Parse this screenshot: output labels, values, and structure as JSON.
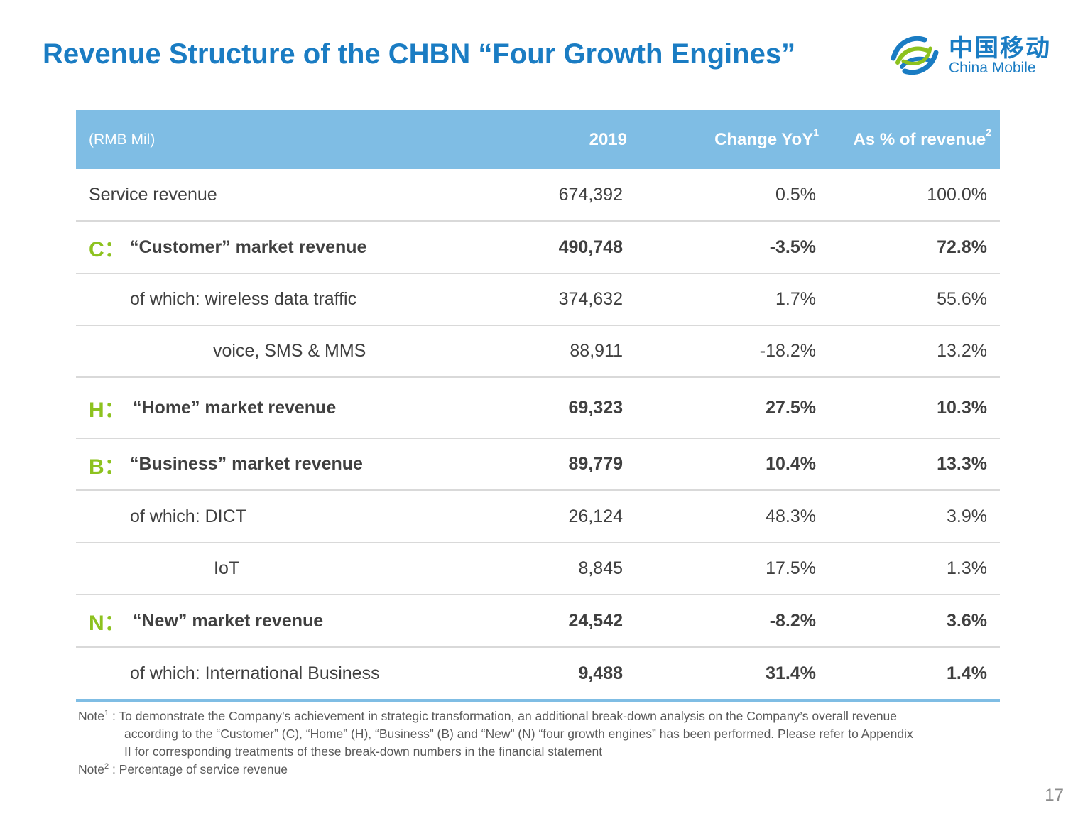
{
  "slide": {
    "title": "Revenue Structure of the CHBN “Four Growth Engines”",
    "page_number": "17"
  },
  "logo": {
    "cn": "中国移动",
    "en": "China Mobile",
    "colors": {
      "blue": "#1a7cc3",
      "green": "#8dc21f"
    }
  },
  "table": {
    "header": {
      "unit": "(RMB Mil)",
      "col1": "2019",
      "col2": "Change YoY",
      "col2_sup": "1",
      "col3": "As % of revenue",
      "col3_sup": "2"
    },
    "rows": [
      {
        "letter": "",
        "label": "Service revenue",
        "v2019": "674,392",
        "yoy": "0.5%",
        "pct": "100.0%"
      },
      {
        "letter": "C：",
        "label": "“Customer” market revenue",
        "v2019": "490,748",
        "yoy": "-3.5%",
        "pct": "72.8%"
      },
      {
        "letter": "",
        "label": "of which: wireless data traffic",
        "v2019": "374,632",
        "yoy": "1.7%",
        "pct": "55.6%"
      },
      {
        "letter": "",
        "label": "voice, SMS & MMS",
        "v2019": "88,911",
        "yoy": "-18.2%",
        "pct": "13.2%"
      },
      {
        "letter": "H：",
        "label": "“Home” market revenue",
        "v2019": "69,323",
        "yoy": "27.5%",
        "pct": "10.3%"
      },
      {
        "letter": "B：",
        "label": "“Business” market revenue",
        "v2019": "89,779",
        "yoy": "10.4%",
        "pct": "13.3%"
      },
      {
        "letter": "",
        "label": "of which: DICT",
        "v2019": "26,124",
        "yoy": "48.3%",
        "pct": "3.9%"
      },
      {
        "letter": "",
        "label": "IoT",
        "v2019": "8,845",
        "yoy": "17.5%",
        "pct": "1.3%"
      },
      {
        "letter": "N：",
        "label": "“New” market revenue",
        "v2019": "24,542",
        "yoy": "-8.2%",
        "pct": "3.6%"
      },
      {
        "letter": "",
        "label": "of which: International Business",
        "v2019": "9,488",
        "yoy": "31.4%",
        "pct": "1.4%"
      }
    ]
  },
  "notes": {
    "note1_prefix": "Note",
    "note1_sup": "1",
    "note1_line1": " : To demonstrate the Company’s achievement in strategic transformation, an additional break-down analysis on the Company’s overall revenue",
    "note1_line2": "according to the “Customer” (C), “Home” (H), “Business” (B) and “New” (N) “four growth engines” has been performed. Please refer to Appendix",
    "note1_line3": "II for corresponding treatments of these break-down numbers in the financial statement",
    "note2_prefix": "Note",
    "note2_sup": "2",
    "note2_text": " : Percentage of service revenue"
  }
}
